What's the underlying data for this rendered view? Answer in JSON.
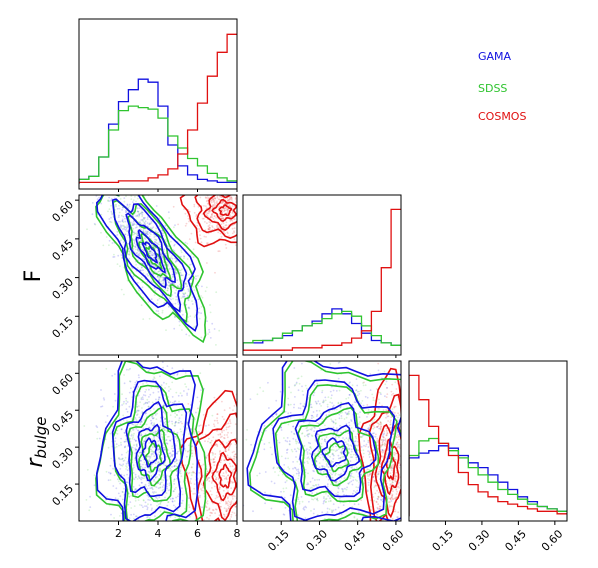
{
  "chart_data": {
    "type": "corner-plot",
    "series_names": [
      "GAMA",
      "SDSS",
      "COSMOS"
    ],
    "colors": {
      "GAMA": "#1010e0",
      "SDSS": "#2fc42f",
      "COSMOS": "#e01010"
    },
    "legend_position": "top-right",
    "axis_labels": {
      "F": "F",
      "r_bulge": "r"
    },
    "r_bulge_subscript": "bulge",
    "axis1": {
      "lim": [
        0,
        8
      ],
      "ticks": [
        "2",
        "4",
        "6",
        "8"
      ]
    },
    "axisF": {
      "lim": [
        0,
        0.62
      ],
      "ticks": [
        "0.15",
        "0.30",
        "0.45",
        "0.60"
      ]
    },
    "axisR": {
      "lim": [
        0,
        0.65
      ],
      "ticks": [
        "0.15",
        "0.30",
        "0.45",
        "0.60"
      ]
    },
    "hist_1": {
      "bins": [
        0,
        0.5,
        1,
        1.5,
        2,
        2.5,
        3,
        3.5,
        4,
        4.5,
        5,
        5.5,
        6,
        6.5,
        7,
        7.5,
        8
      ],
      "GAMA": [
        0.03,
        0.05,
        0.18,
        0.4,
        0.55,
        0.63,
        0.7,
        0.68,
        0.52,
        0.26,
        0.12,
        0.06,
        0.03,
        0.02,
        0.01,
        0.01
      ],
      "SDSS": [
        0.03,
        0.05,
        0.18,
        0.36,
        0.49,
        0.52,
        0.51,
        0.5,
        0.44,
        0.32,
        0.24,
        0.17,
        0.12,
        0.07,
        0.04,
        0.02
      ],
      "COSMOS": [
        0.01,
        0.01,
        0.01,
        0.01,
        0.02,
        0.02,
        0.02,
        0.04,
        0.06,
        0.1,
        0.2,
        0.36,
        0.54,
        0.72,
        0.88,
        1.0
      ]
    },
    "hist_F": {
      "bins": [
        0,
        0.03875,
        0.0775,
        0.11625,
        0.155,
        0.19375,
        0.2325,
        0.27125,
        0.31,
        0.34875,
        0.3875,
        0.42625,
        0.465,
        0.50375,
        0.5425,
        0.58125,
        0.62
      ],
      "GAMA": [
        0.03,
        0.03,
        0.04,
        0.05,
        0.06,
        0.08,
        0.1,
        0.12,
        0.15,
        0.17,
        0.15,
        0.11,
        0.07,
        0.04,
        0.03,
        0.02
      ],
      "SDSS": [
        0.03,
        0.04,
        0.04,
        0.05,
        0.07,
        0.08,
        0.1,
        0.11,
        0.13,
        0.15,
        0.16,
        0.14,
        0.1,
        0.06,
        0.03,
        0.02
      ],
      "COSMOS": [
        0.0,
        0.0,
        0.0,
        0.0,
        0.0,
        0.01,
        0.01,
        0.01,
        0.02,
        0.02,
        0.03,
        0.05,
        0.08,
        0.16,
        0.34,
        0.58
      ]
    },
    "hist_R": {
      "bins": [
        0,
        0.040625,
        0.08125,
        0.121875,
        0.1625,
        0.203125,
        0.24375,
        0.284375,
        0.325,
        0.365625,
        0.40625,
        0.446875,
        0.4875,
        0.528125,
        0.56875,
        0.609375,
        0.65
      ],
      "GAMA": [
        0.24,
        0.26,
        0.27,
        0.29,
        0.28,
        0.25,
        0.22,
        0.2,
        0.17,
        0.14,
        0.11,
        0.08,
        0.06,
        0.04,
        0.03,
        0.02
      ],
      "SDSS": [
        0.25,
        0.31,
        0.32,
        0.3,
        0.27,
        0.24,
        0.2,
        0.17,
        0.14,
        0.11,
        0.09,
        0.07,
        0.05,
        0.04,
        0.03,
        0.02
      ],
      "COSMOS": [
        0.58,
        0.48,
        0.37,
        0.3,
        0.25,
        0.18,
        0.13,
        0.1,
        0.08,
        0.06,
        0.05,
        0.04,
        0.03,
        0.02,
        0.02,
        0.01
      ]
    },
    "panels": [
      {
        "id": "hist-1",
        "row": 0,
        "col": 0,
        "kind": "hist"
      },
      {
        "id": "F-vs-1",
        "row": 1,
        "col": 0,
        "kind": "contour"
      },
      {
        "id": "hist-F",
        "row": 1,
        "col": 1,
        "kind": "hist"
      },
      {
        "id": "R-vs-1",
        "row": 2,
        "col": 0,
        "kind": "contour"
      },
      {
        "id": "R-vs-F",
        "row": 2,
        "col": 1,
        "kind": "contour"
      },
      {
        "id": "hist-R",
        "row": 2,
        "col": 2,
        "kind": "hist"
      }
    ]
  }
}
